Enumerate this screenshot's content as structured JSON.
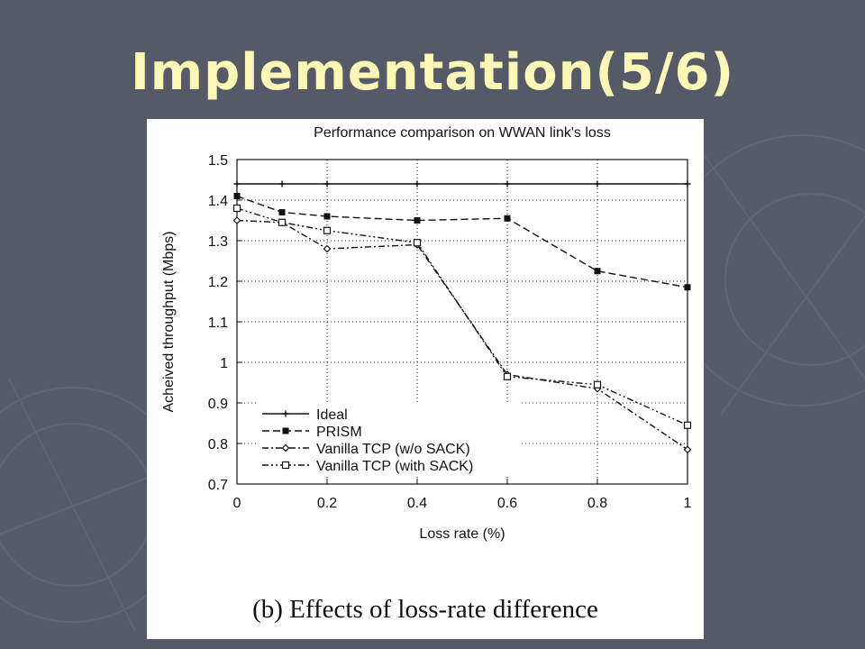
{
  "slide": {
    "title": "Implementation(5/6)",
    "background_color": "#565a68",
    "title_color": "#fbf7b4"
  },
  "figure": {
    "caption": "(b) Effects of loss-rate difference"
  },
  "chart_data": {
    "type": "line",
    "title": "Performance comparison on WWAN link's loss",
    "xlabel": "Loss rate (%)",
    "ylabel": "Acheived throughput (Mbps)",
    "xlim": [
      0,
      1
    ],
    "ylim": [
      0.7,
      1.5
    ],
    "xticks": [
      "0",
      "0.2",
      "0.4",
      "0.6",
      "0.8",
      "1"
    ],
    "yticks": [
      "0.7",
      "0.8",
      "0.9",
      "1",
      "1.1",
      "1.2",
      "1.3",
      "1.4",
      "1.5"
    ],
    "grid": true,
    "legend_position": "bottom-left",
    "series": [
      {
        "name": "Ideal",
        "marker": "plus",
        "dash": "solid",
        "x": [
          0,
          0.1,
          0.2,
          0.4,
          0.6,
          0.8,
          1
        ],
        "y": [
          1.44,
          1.44,
          1.44,
          1.44,
          1.44,
          1.44,
          1.44
        ]
      },
      {
        "name": "PRISM",
        "marker": "filled-square",
        "dash": "dashed",
        "x": [
          0,
          0.1,
          0.2,
          0.4,
          0.6,
          0.8,
          1
        ],
        "y": [
          1.41,
          1.37,
          1.36,
          1.35,
          1.355,
          1.225,
          1.185
        ]
      },
      {
        "name": "Vanilla TCP (w/o SACK)",
        "marker": "diamond",
        "dash": "dash-dot",
        "x": [
          0,
          0.1,
          0.2,
          0.4,
          0.6,
          0.8,
          1
        ],
        "y": [
          1.35,
          1.345,
          1.28,
          1.29,
          0.97,
          0.935,
          0.785
        ]
      },
      {
        "name": "Vanilla TCP (with SACK)",
        "marker": "open-square",
        "dash": "dash-dot-dot",
        "x": [
          0,
          0.1,
          0.2,
          0.4,
          0.6,
          0.8,
          1
        ],
        "y": [
          1.38,
          1.345,
          1.325,
          1.295,
          0.965,
          0.945,
          0.845
        ]
      }
    ]
  }
}
